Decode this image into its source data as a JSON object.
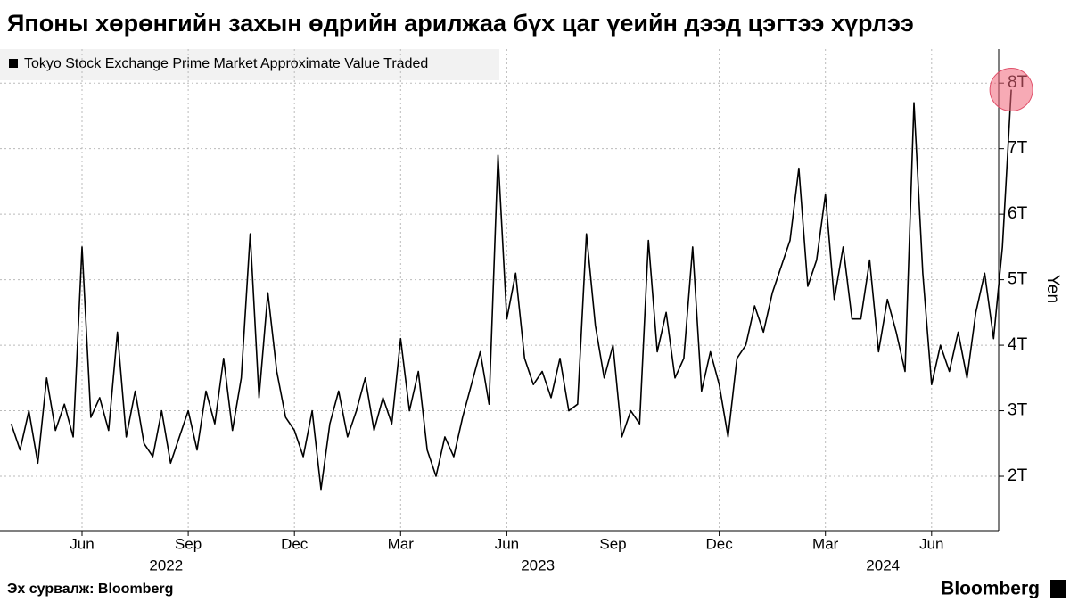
{
  "chart_data": {
    "type": "line",
    "title": "Японы хөрөнгийн захын өдрийн арилжаа бүх цаг үеийн дээд цэгтээ хүрлээ",
    "y_label": "Yen",
    "source": "Эх сурвалж: Bloomberg",
    "brand": "Bloomberg",
    "legend_position": "top-left",
    "grid": true,
    "x": [
      "2022-04",
      "2022-04",
      "2022-04",
      "2022-04",
      "2022-05",
      "2022-05",
      "2022-05",
      "2022-05",
      "2022-06",
      "2022-06",
      "2022-06",
      "2022-06",
      "2022-07",
      "2022-07",
      "2022-07",
      "2022-07",
      "2022-08",
      "2022-08",
      "2022-08",
      "2022-08",
      "2022-09",
      "2022-09",
      "2022-09",
      "2022-09",
      "2022-10",
      "2022-10",
      "2022-10",
      "2022-10",
      "2022-11",
      "2022-11",
      "2022-11",
      "2022-11",
      "2022-12",
      "2022-12",
      "2022-12",
      "2022-12",
      "2023-01",
      "2023-01",
      "2023-01",
      "2023-01",
      "2023-02",
      "2023-02",
      "2023-02",
      "2023-02",
      "2023-03",
      "2023-03",
      "2023-03",
      "2023-03",
      "2023-04",
      "2023-04",
      "2023-04",
      "2023-04",
      "2023-05",
      "2023-05",
      "2023-05",
      "2023-05",
      "2023-06",
      "2023-06",
      "2023-06",
      "2023-06",
      "2023-07",
      "2023-07",
      "2023-07",
      "2023-07",
      "2023-08",
      "2023-08",
      "2023-08",
      "2023-08",
      "2023-09",
      "2023-09",
      "2023-09",
      "2023-09",
      "2023-10",
      "2023-10",
      "2023-10",
      "2023-10",
      "2023-11",
      "2023-11",
      "2023-11",
      "2023-11",
      "2023-12",
      "2023-12",
      "2023-12",
      "2023-12",
      "2024-01",
      "2024-01",
      "2024-01",
      "2024-01",
      "2024-02",
      "2024-02",
      "2024-02",
      "2024-02",
      "2024-03",
      "2024-03",
      "2024-03",
      "2024-03",
      "2024-04",
      "2024-04",
      "2024-04",
      "2024-04",
      "2024-05",
      "2024-05",
      "2024-05",
      "2024-05",
      "2024-06",
      "2024-06",
      "2024-06",
      "2024-06",
      "2024-07",
      "2024-07",
      "2024-07",
      "2024-07",
      "2024-08",
      "2024-08"
    ],
    "series": [
      {
        "name": "Tokyo Stock Exchange Prime Market Approximate Value Traded",
        "color": "#000000",
        "values": [
          2.8,
          2.4,
          3.0,
          2.2,
          3.5,
          2.7,
          3.1,
          2.6,
          5.5,
          2.9,
          3.2,
          2.7,
          4.2,
          2.6,
          3.3,
          2.5,
          2.3,
          3.0,
          2.2,
          2.6,
          3.0,
          2.4,
          3.3,
          2.8,
          3.8,
          2.7,
          3.5,
          5.7,
          3.2,
          4.8,
          3.6,
          2.9,
          2.7,
          2.3,
          3.0,
          1.8,
          2.8,
          3.3,
          2.6,
          3.0,
          3.5,
          2.7,
          3.2,
          2.8,
          4.1,
          3.0,
          3.6,
          2.4,
          2.0,
          2.6,
          2.3,
          2.9,
          3.4,
          3.9,
          3.1,
          6.9,
          4.4,
          5.1,
          3.8,
          3.4,
          3.6,
          3.2,
          3.8,
          3.0,
          3.1,
          5.7,
          4.3,
          3.5,
          4.0,
          2.6,
          3.0,
          2.8,
          5.6,
          3.9,
          4.5,
          3.5,
          3.8,
          5.5,
          3.3,
          3.9,
          3.4,
          2.6,
          3.8,
          4.0,
          4.6,
          4.2,
          4.8,
          5.2,
          5.6,
          6.7,
          4.9,
          5.3,
          6.3,
          4.7,
          5.5,
          4.4,
          4.4,
          5.3,
          3.9,
          4.7,
          4.2,
          3.6,
          7.7,
          5.1,
          3.4,
          4.0,
          3.6,
          4.2,
          3.5,
          4.5,
          5.1,
          4.1,
          5.5,
          7.9
        ]
      }
    ],
    "ylim": [
      1.17,
      8.52
    ],
    "yticks": [
      {
        "value": 2,
        "label": "2T"
      },
      {
        "value": 3,
        "label": "3T"
      },
      {
        "value": 4,
        "label": "4T"
      },
      {
        "value": 5,
        "label": "5T"
      },
      {
        "value": 6,
        "label": "6T"
      },
      {
        "value": 7,
        "label": "7T"
      },
      {
        "value": 8,
        "label": "8T"
      }
    ],
    "xticks": [
      {
        "value": "2022-06",
        "label": "Jun"
      },
      {
        "value": "2022-09",
        "label": "Sep"
      },
      {
        "value": "2022-12",
        "label": "Dec"
      },
      {
        "value": "2023-03",
        "label": "Mar"
      },
      {
        "value": "2023-06",
        "label": "Jun"
      },
      {
        "value": "2023-09",
        "label": "Sep"
      },
      {
        "value": "2023-12",
        "label": "Dec"
      },
      {
        "value": "2024-03",
        "label": "Mar"
      },
      {
        "value": "2024-06",
        "label": "Jun"
      }
    ],
    "years": [
      "2022",
      "2023",
      "2024"
    ]
  }
}
